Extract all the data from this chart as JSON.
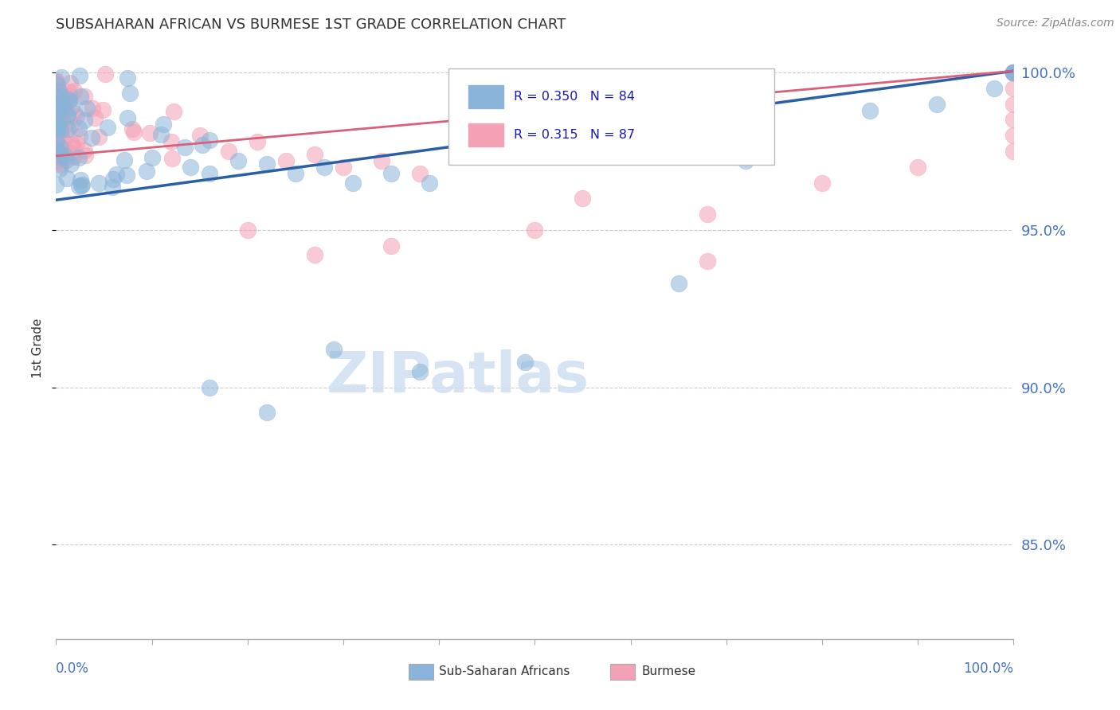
{
  "title": "Subsaharan African vs Burmese 1st Grade Correlation Chart",
  "title_display": "SUBSAHARAN AFRICAN VS BURMESE 1ST GRADE CORRELATION CHART",
  "source": "Source: ZipAtlas.com",
  "ylabel": "1st Grade",
  "legend_label_blue": "Sub-Saharan Africans",
  "legend_label_pink": "Burmese",
  "legend_r_blue": "R = 0.350",
  "legend_n_blue": "N = 84",
  "legend_r_pink": "R = 0.315",
  "legend_n_pink": "N = 87",
  "blue_scatter_color": "#8ab4d9",
  "pink_scatter_color": "#f4a0b5",
  "blue_line_color": "#2b5fa5",
  "pink_line_color": "#d9607a",
  "right_axis_color": "#4472c4",
  "title_color": "#333333",
  "source_color": "#888888",
  "label_color": "#333333",
  "grid_color": "#cccccc",
  "watermark_color": "#ccddf0",
  "xlim": [
    0.0,
    1.0
  ],
  "ylim": [
    0.82,
    1.005
  ],
  "yticks": [
    0.85,
    0.9,
    0.95,
    1.0
  ],
  "ytick_labels": [
    "85.0%",
    "90.0%",
    "95.0%",
    "100.0%"
  ],
  "blue_line_x": [
    0.0,
    1.0
  ],
  "blue_line_y": [
    0.9595,
    1.0005
  ],
  "pink_line_x": [
    0.0,
    1.0
  ],
  "pink_line_y": [
    0.9735,
    1.0005
  ],
  "seed": 42,
  "n_blue": 84,
  "n_pink": 87
}
